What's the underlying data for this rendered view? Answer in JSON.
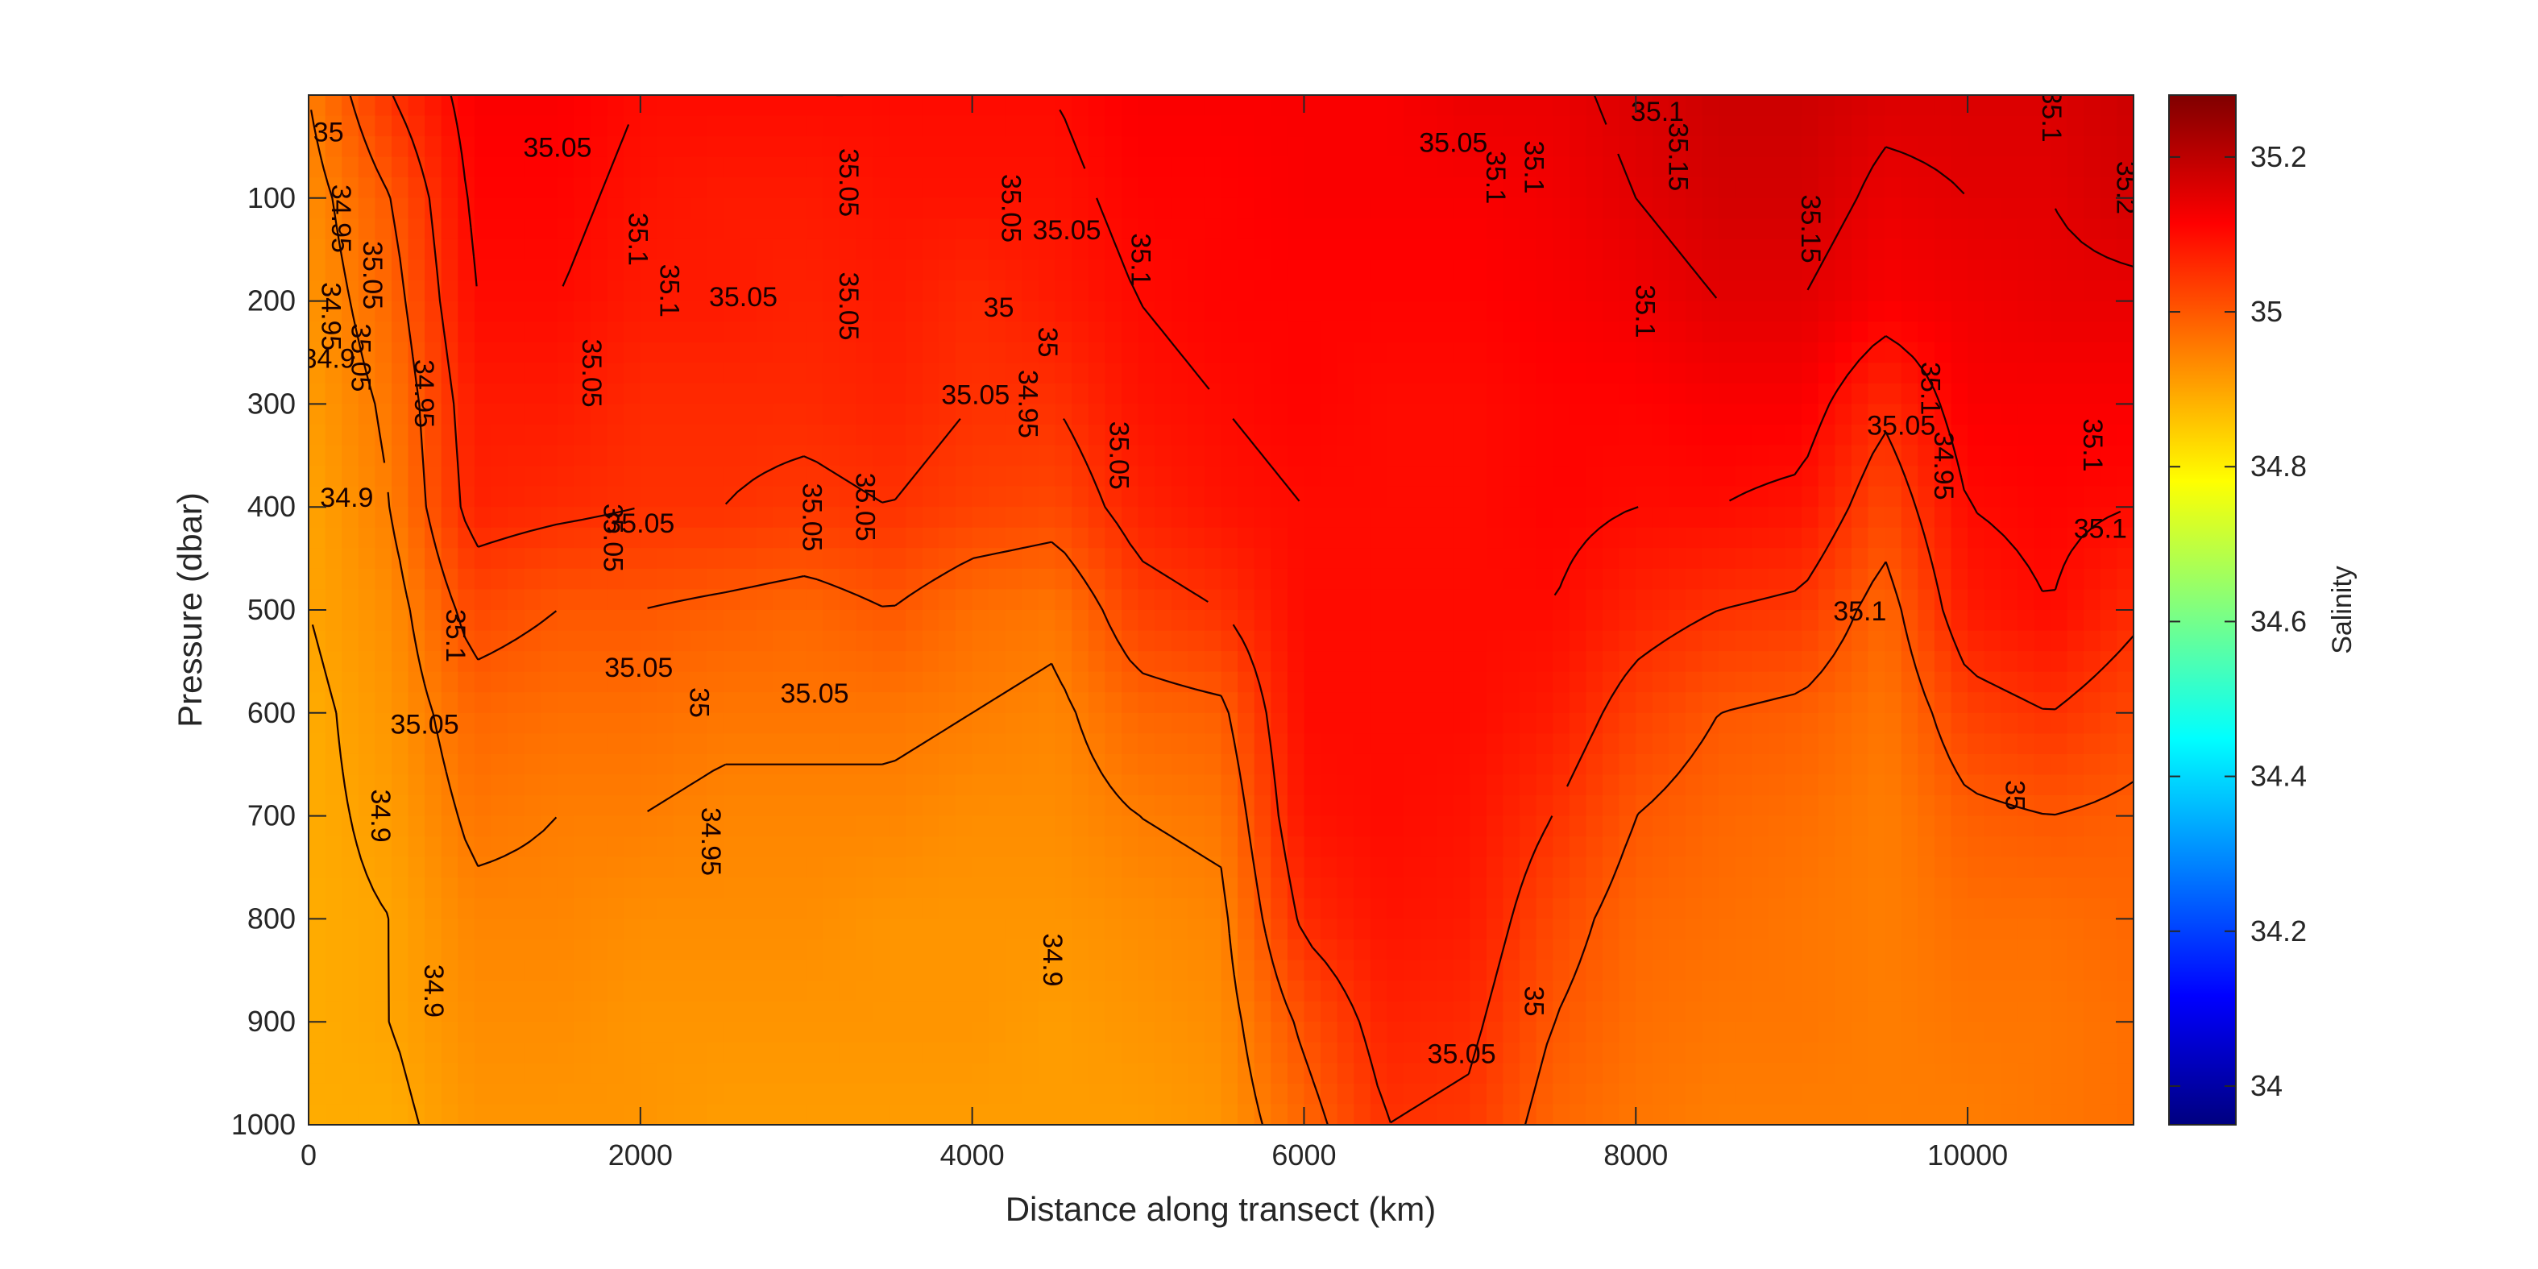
{
  "chart_data": {
    "type": "heatmap",
    "title": "",
    "xlabel": "Distance along transect (km)",
    "ylabel": "Pressure (dbar)",
    "xlim": [
      0,
      11000
    ],
    "ylim": [
      1000,
      0
    ],
    "y_reversed": true,
    "x_ticks": [
      0,
      2000,
      4000,
      6000,
      8000,
      10000
    ],
    "x_tick_labels": [
      "0",
      "2000",
      "4000",
      "6000",
      "8000",
      "10000"
    ],
    "y_ticks": [
      100,
      200,
      300,
      400,
      500,
      600,
      700,
      800,
      900,
      1000
    ],
    "y_tick_labels": [
      "100",
      "200",
      "300",
      "400",
      "500",
      "600",
      "700",
      "800",
      "900",
      "1000"
    ],
    "colorbar": {
      "label": "Salinity",
      "range": [
        33.95,
        35.28
      ],
      "ticks": [
        34,
        34.2,
        34.4,
        34.6,
        34.8,
        35,
        35.2
      ],
      "tick_labels": [
        "34",
        "34.2",
        "34.4",
        "34.6",
        "34.8",
        "35",
        "35.2"
      ],
      "colormap": "jet"
    },
    "contour_levels": [
      34.9,
      34.95,
      35,
      35.05,
      35.1,
      35.15
    ],
    "x_samples": [
      0,
      500,
      1000,
      1500,
      2000,
      2500,
      3000,
      3500,
      4000,
      4500,
      5000,
      5500,
      6000,
      6500,
      7000,
      7500,
      8000,
      8500,
      9000,
      9500,
      10000,
      10500,
      11000
    ],
    "y_samples": [
      0,
      100,
      200,
      300,
      400,
      500,
      600,
      700,
      800,
      900,
      1000
    ],
    "salinity_grid": [
      [
        34.95,
        35.05,
        35.12,
        35.12,
        35.1,
        35.1,
        35.1,
        35.1,
        35.1,
        35.1,
        35.12,
        35.12,
        35.12,
        35.12,
        35.14,
        35.14,
        35.16,
        35.18,
        35.18,
        35.16,
        35.16,
        35.16,
        35.18
      ],
      [
        34.93,
        35.0,
        35.11,
        35.11,
        35.09,
        35.08,
        35.08,
        35.09,
        35.09,
        35.09,
        35.11,
        35.11,
        35.12,
        35.12,
        35.12,
        35.13,
        35.15,
        35.17,
        35.17,
        35.14,
        35.15,
        35.15,
        35.17
      ],
      [
        34.92,
        34.98,
        35.1,
        35.1,
        35.08,
        35.08,
        35.07,
        35.08,
        35.06,
        35.08,
        35.1,
        35.11,
        35.11,
        35.11,
        35.11,
        35.12,
        35.13,
        35.15,
        35.15,
        35.12,
        35.13,
        35.14,
        35.14
      ],
      [
        34.91,
        34.96,
        35.08,
        35.08,
        35.06,
        35.06,
        35.06,
        35.07,
        35.05,
        35.05,
        35.09,
        35.1,
        35.11,
        35.1,
        35.1,
        35.11,
        35.11,
        35.12,
        35.12,
        35.06,
        35.12,
        35.12,
        35.12
      ],
      [
        34.9,
        34.95,
        35.07,
        35.06,
        35.05,
        35.05,
        35.04,
        35.05,
        35.03,
        35.02,
        35.07,
        35.09,
        35.1,
        35.1,
        35.1,
        35.11,
        35.1,
        35.1,
        35.09,
        35.02,
        35.1,
        35.11,
        35.1
      ],
      [
        34.9,
        34.93,
        35.02,
        35.0,
        35.0,
        34.99,
        34.98,
        35.0,
        34.97,
        34.96,
        35.03,
        35.05,
        35.1,
        35.1,
        35.1,
        35.1,
        35.07,
        35.05,
        35.04,
        34.98,
        35.08,
        35.1,
        35.06
      ],
      [
        34.89,
        34.92,
        34.98,
        34.97,
        34.97,
        34.96,
        34.96,
        34.96,
        34.95,
        34.94,
        34.98,
        34.99,
        35.1,
        35.1,
        35.1,
        35.08,
        35.03,
        35.0,
        34.99,
        34.96,
        35.03,
        35.05,
        35.02
      ],
      [
        34.89,
        34.91,
        34.96,
        34.95,
        34.95,
        34.94,
        34.94,
        34.94,
        34.93,
        34.93,
        34.95,
        34.96,
        35.09,
        35.1,
        35.09,
        35.05,
        35.0,
        34.98,
        34.97,
        34.95,
        34.99,
        35.0,
        34.99
      ],
      [
        34.89,
        34.9,
        34.94,
        34.94,
        34.93,
        34.93,
        34.93,
        34.92,
        34.92,
        34.92,
        34.93,
        34.94,
        35.06,
        35.09,
        35.08,
        35.02,
        34.98,
        34.97,
        34.96,
        34.95,
        34.97,
        34.97,
        34.98
      ],
      [
        34.89,
        34.9,
        34.93,
        34.93,
        34.92,
        34.92,
        34.92,
        34.92,
        34.92,
        34.91,
        34.92,
        34.93,
        35.01,
        35.07,
        35.06,
        35.0,
        34.97,
        34.96,
        34.96,
        34.95,
        34.96,
        34.96,
        34.97
      ],
      [
        34.89,
        34.89,
        34.92,
        34.92,
        34.92,
        34.91,
        34.91,
        34.91,
        34.91,
        34.91,
        34.91,
        34.92,
        34.98,
        35.05,
        35.04,
        34.98,
        34.96,
        34.95,
        34.95,
        34.95,
        34.95,
        34.96,
        34.97
      ]
    ],
    "contour_labels": [
      {
        "text": "35",
        "x": 120,
        "y": 45
      },
      {
        "text": "34.95",
        "x": 140,
        "y": 120
      },
      {
        "text": "34.95",
        "x": 80,
        "y": 215
      },
      {
        "text": "34.9",
        "x": 120,
        "y": 265
      },
      {
        "text": "35.05",
        "x": 330,
        "y": 175
      },
      {
        "text": "35.05",
        "x": 260,
        "y": 255
      },
      {
        "text": "34.9",
        "x": 230,
        "y": 400
      },
      {
        "text": "34.95",
        "x": 640,
        "y": 290
      },
      {
        "text": "35.1",
        "x": 830,
        "y": 525
      },
      {
        "text": "35.05",
        "x": 700,
        "y": 620
      },
      {
        "text": "34.9",
        "x": 380,
        "y": 700
      },
      {
        "text": "34.9",
        "x": 700,
        "y": 870
      },
      {
        "text": "35.05",
        "x": 1500,
        "y": 60
      },
      {
        "text": "35.05",
        "x": 1650,
        "y": 270
      },
      {
        "text": "35.05",
        "x": 1780,
        "y": 430
      },
      {
        "text": "35.05",
        "x": 2000,
        "y": 425
      },
      {
        "text": "35.1",
        "x": 1930,
        "y": 140
      },
      {
        "text": "35.1",
        "x": 2120,
        "y": 190
      },
      {
        "text": "35.05",
        "x": 1990,
        "y": 565
      },
      {
        "text": "35",
        "x": 2300,
        "y": 590
      },
      {
        "text": "34.95",
        "x": 2370,
        "y": 725
      },
      {
        "text": "35.05",
        "x": 2620,
        "y": 205
      },
      {
        "text": "35.05",
        "x": 2980,
        "y": 410
      },
      {
        "text": "35.05",
        "x": 3300,
        "y": 400
      },
      {
        "text": "35.05",
        "x": 3050,
        "y": 590
      },
      {
        "text": "35.05",
        "x": 3200,
        "y": 85
      },
      {
        "text": "35.05",
        "x": 3200,
        "y": 205
      },
      {
        "text": "35.05",
        "x": 4020,
        "y": 300
      },
      {
        "text": "35.05",
        "x": 4180,
        "y": 110
      },
      {
        "text": "34.95",
        "x": 4280,
        "y": 300
      },
      {
        "text": "35",
        "x": 4160,
        "y": 215
      },
      {
        "text": "35",
        "x": 4400,
        "y": 240
      },
      {
        "text": "34.9",
        "x": 4430,
        "y": 840
      },
      {
        "text": "35.05",
        "x": 4570,
        "y": 140
      },
      {
        "text": "35.05",
        "x": 4830,
        "y": 350
      },
      {
        "text": "35.1",
        "x": 4960,
        "y": 160
      },
      {
        "text": "35.05",
        "x": 6900,
        "y": 55
      },
      {
        "text": "35.1",
        "x": 7100,
        "y": 80
      },
      {
        "text": "35.1",
        "x": 7330,
        "y": 70
      },
      {
        "text": "35.05",
        "x": 6950,
        "y": 940
      },
      {
        "text": "35",
        "x": 7330,
        "y": 880
      },
      {
        "text": "35.15",
        "x": 8200,
        "y": 60
      },
      {
        "text": "35.1",
        "x": 8130,
        "y": 25
      },
      {
        "text": "35.1",
        "x": 8000,
        "y": 210
      },
      {
        "text": "35.15",
        "x": 9000,
        "y": 130
      },
      {
        "text": "35.05",
        "x": 9600,
        "y": 330
      },
      {
        "text": "35.1",
        "x": 9720,
        "y": 285
      },
      {
        "text": "34.95",
        "x": 9800,
        "y": 360
      },
      {
        "text": "35.1",
        "x": 9350,
        "y": 510
      },
      {
        "text": "35",
        "x": 10230,
        "y": 680
      },
      {
        "text": "35.1",
        "x": 10700,
        "y": 340
      },
      {
        "text": "35.1",
        "x": 10800,
        "y": 430
      },
      {
        "text": "35.1",
        "x": 10450,
        "y": 20
      },
      {
        "text": "35.2",
        "x": 10900,
        "y": 90
      }
    ]
  }
}
